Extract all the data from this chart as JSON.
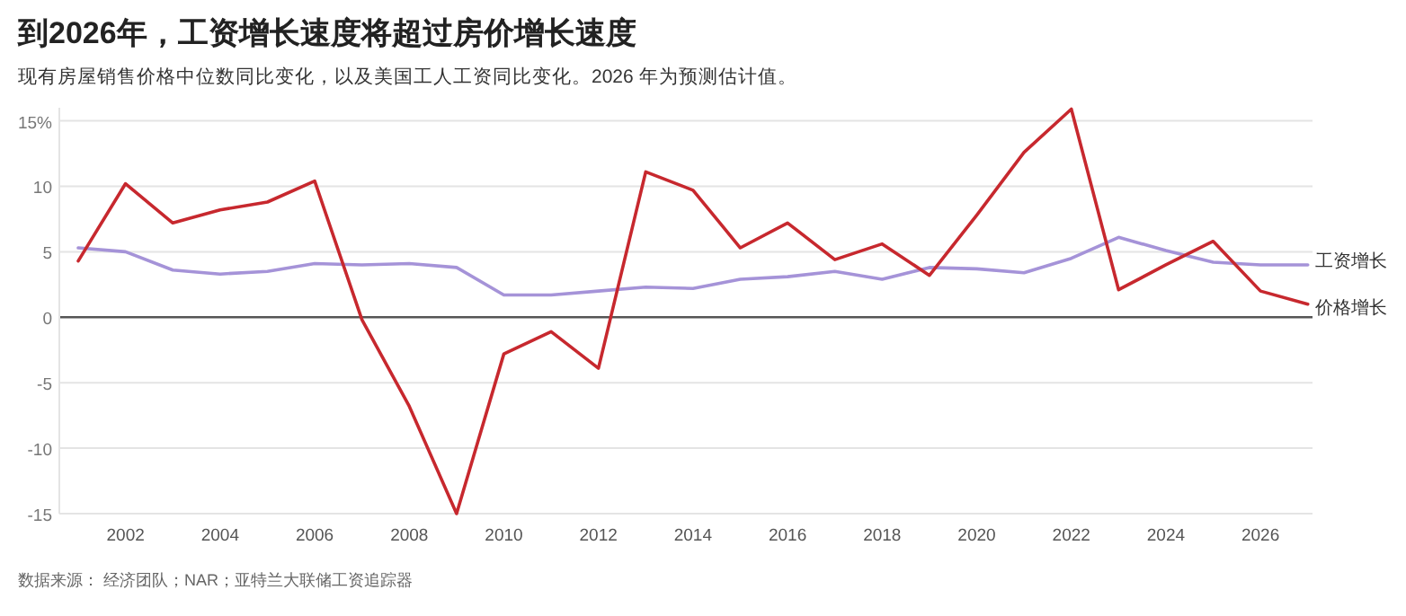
{
  "chart_data": {
    "type": "line",
    "title": "到2026年，工资增长速度将超过房价增长速度",
    "subtitle": "现有房屋销售价格中位数同比变化，以及美国工人工资同比变化。2026 年为预测估计值。",
    "annotations": [
      "数据来源： 经济团队；NAR；亚特兰大联储工资追踪器"
    ],
    "x": [
      2001,
      2002,
      2003,
      2004,
      2005,
      2006,
      2007,
      2008,
      2009,
      2010,
      2011,
      2012,
      2013,
      2014,
      2015,
      2016,
      2017,
      2018,
      2019,
      2020,
      2021,
      2022,
      2023,
      2024,
      2025,
      2026,
      2027
    ],
    "series": [
      {
        "name": "工资增长",
        "color": "#a593d8",
        "values": [
          5.3,
          5.0,
          3.6,
          3.3,
          3.5,
          4.1,
          4.0,
          4.1,
          3.8,
          1.7,
          1.7,
          2.0,
          2.3,
          2.2,
          2.9,
          3.1,
          3.5,
          2.9,
          3.8,
          3.7,
          3.4,
          4.5,
          6.1,
          5.1,
          4.2,
          4.0,
          4.0
        ]
      },
      {
        "name": "价格增长",
        "color": "#c7282e",
        "values": [
          4.3,
          10.2,
          7.2,
          8.2,
          8.8,
          10.4,
          -0.2,
          -6.8,
          -15.0,
          -2.8,
          -1.1,
          -3.9,
          11.1,
          9.7,
          5.3,
          7.2,
          4.4,
          5.6,
          3.2,
          7.8,
          12.6,
          15.9,
          2.1,
          4.0,
          5.8,
          2.0,
          1.0
        ]
      }
    ],
    "xlim": [
      2000.6,
      2027.1
    ],
    "xticks": [
      2002,
      2004,
      2006,
      2008,
      2010,
      2012,
      2014,
      2016,
      2018,
      2020,
      2022,
      2024,
      2026
    ],
    "ylim": [
      -15,
      16
    ],
    "yticks": [
      {
        "value": 15,
        "label": "15%"
      },
      10,
      5,
      0,
      -5,
      -10,
      -15
    ],
    "grid": "y",
    "line_style": "solid",
    "marker": "none"
  }
}
